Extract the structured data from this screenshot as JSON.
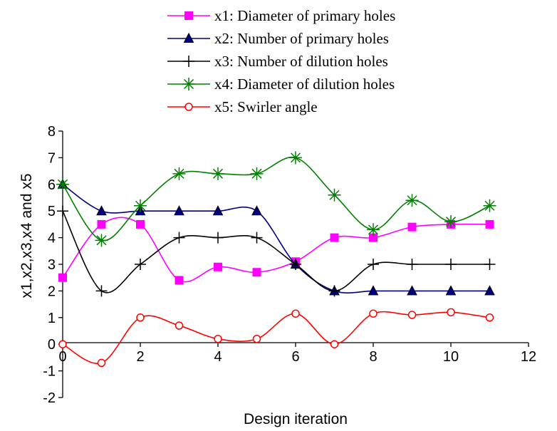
{
  "chart_data": {
    "type": "line",
    "title": "",
    "xlabel": "Design iteration",
    "ylabel": "x1,x2,x3,x4 and x5",
    "xlim": [
      0,
      12
    ],
    "ylim": [
      -2,
      8
    ],
    "x_ticks": [
      "0",
      "2",
      "4",
      "6",
      "8",
      "10",
      "12"
    ],
    "y_ticks": [
      "-2",
      "-1",
      "0",
      "1",
      "2",
      "3",
      "4",
      "5",
      "6",
      "7",
      "8"
    ],
    "grid": false,
    "legend_position": "top",
    "x": [
      0,
      1,
      2,
      3,
      4,
      5,
      6,
      7,
      8,
      9,
      10,
      11
    ],
    "series": [
      {
        "name": "x1: Diameter of primary holes",
        "color": "#ff00ff",
        "marker": "square",
        "values": [
          2.5,
          4.5,
          4.5,
          2.4,
          2.9,
          2.7,
          3.1,
          4.0,
          4.0,
          4.4,
          4.5,
          4.5
        ]
      },
      {
        "name": "x2: Number of primary holes",
        "color": "#000080",
        "marker": "triangle",
        "values": [
          6,
          5,
          5,
          5,
          5,
          5,
          3,
          2,
          2,
          2,
          2,
          2
        ]
      },
      {
        "name": "x3: Number of dilution holes",
        "color": "#000000",
        "marker": "plus",
        "values": [
          5,
          2,
          3,
          4,
          4,
          4,
          3,
          2,
          3,
          3,
          3,
          3
        ]
      },
      {
        "name": "x4: Diameter of dilution holes",
        "color": "#008000",
        "marker": "star",
        "values": [
          6.0,
          3.9,
          5.2,
          6.4,
          6.4,
          6.4,
          7.0,
          5.6,
          4.3,
          5.4,
          4.6,
          5.2
        ]
      },
      {
        "name": "x5: Swirler angle",
        "color": "#ff0000",
        "marker": "circle",
        "values": [
          0.0,
          -0.7,
          1.0,
          0.7,
          0.2,
          0.2,
          1.15,
          0.0,
          1.15,
          1.1,
          1.2,
          1.0
        ]
      }
    ]
  }
}
